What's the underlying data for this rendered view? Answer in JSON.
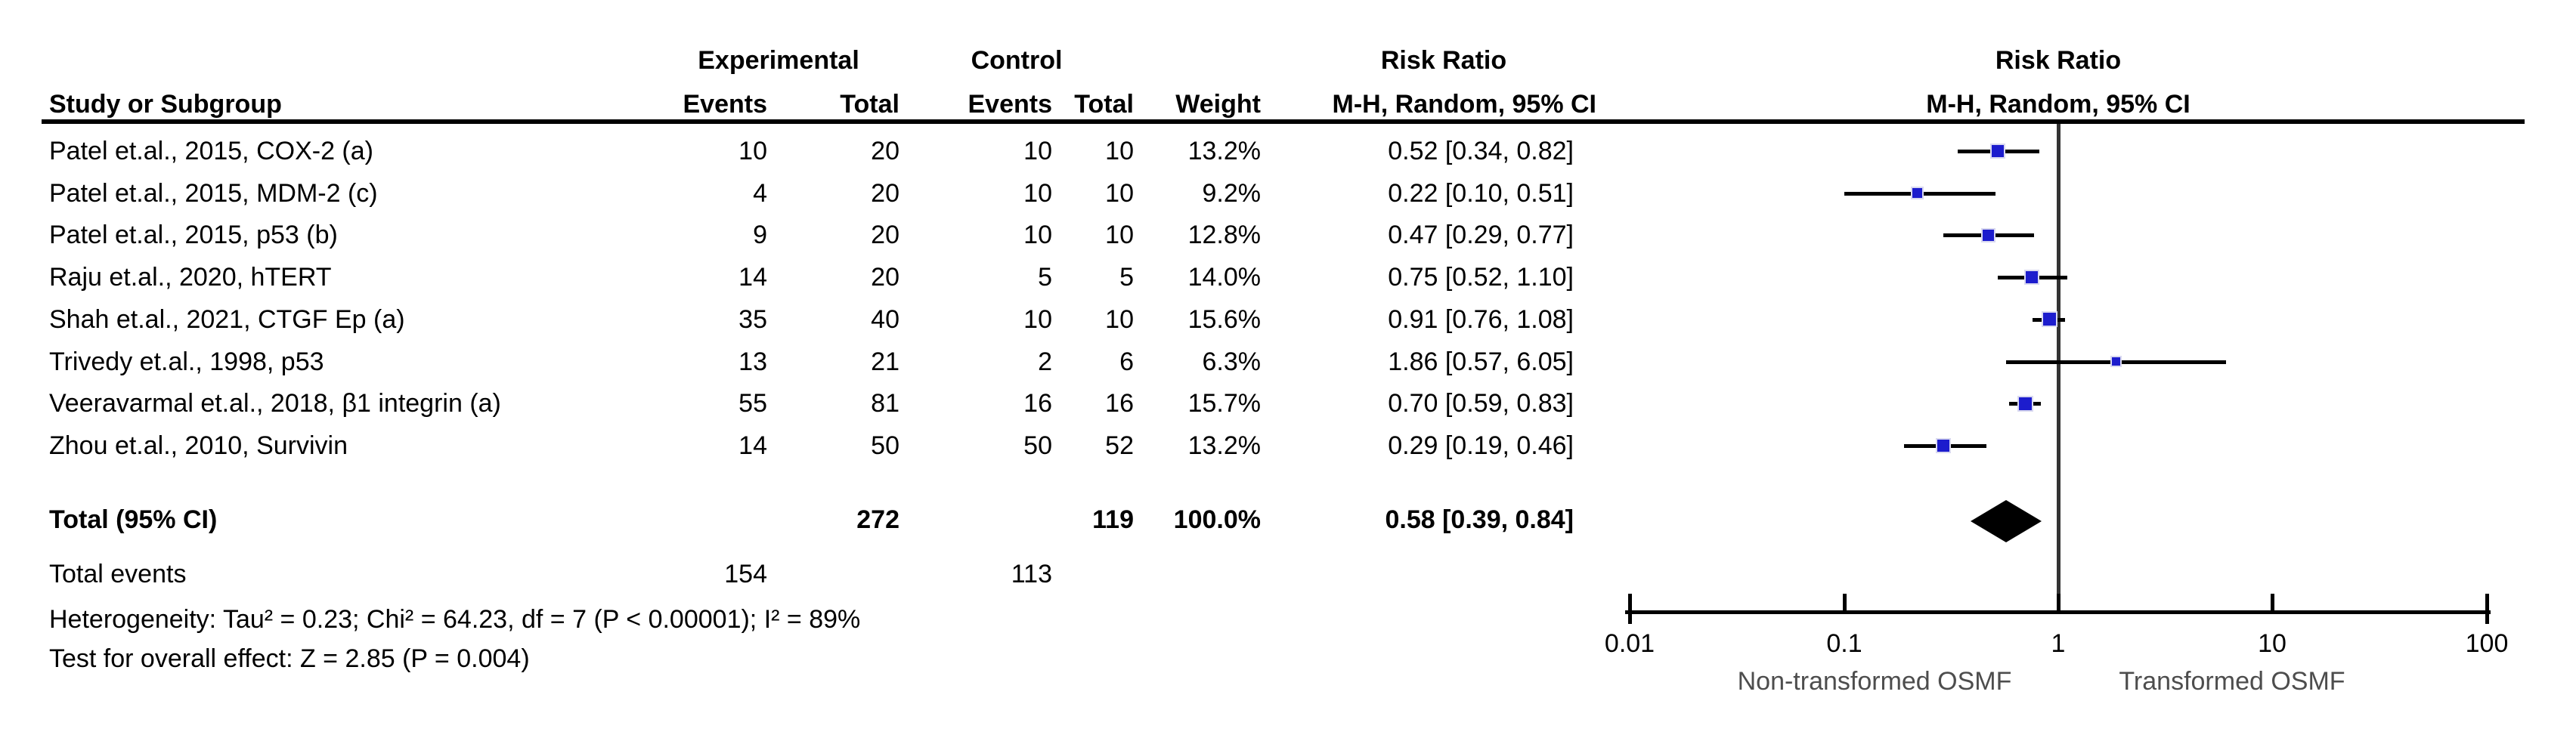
{
  "table": {
    "col_headers": {
      "study": "Study or Subgroup",
      "group_experimental": "Experimental",
      "group_control": "Control",
      "events": "Events",
      "total": "Total",
      "weight": "Weight",
      "effect_title": "Risk Ratio",
      "effect_method": "M-H, Random, 95% CI",
      "plot_title": "Risk Ratio",
      "plot_method": "M-H, Random, 95% CI"
    },
    "rows": [
      {
        "study": "Patel et.al., 2015, COX-2 (a)",
        "exp_events": "10",
        "exp_total": "20",
        "ctrl_events": "10",
        "ctrl_total": "10",
        "weight": "13.2%",
        "rr_ci": "0.52 [0.34, 0.82]"
      },
      {
        "study": "Patel et.al., 2015, MDM-2 (c)",
        "exp_events": "4",
        "exp_total": "20",
        "ctrl_events": "10",
        "ctrl_total": "10",
        "weight": "9.2%",
        "rr_ci": "0.22 [0.10, 0.51]"
      },
      {
        "study": "Patel et.al., 2015, p53 (b)",
        "exp_events": "9",
        "exp_total": "20",
        "ctrl_events": "10",
        "ctrl_total": "10",
        "weight": "12.8%",
        "rr_ci": "0.47 [0.29, 0.77]"
      },
      {
        "study": "Raju et.al., 2020, hTERT",
        "exp_events": "14",
        "exp_total": "20",
        "ctrl_events": "5",
        "ctrl_total": "5",
        "weight": "14.0%",
        "rr_ci": "0.75 [0.52, 1.10]"
      },
      {
        "study": "Shah et.al., 2021, CTGF Ep (a)",
        "exp_events": "35",
        "exp_total": "40",
        "ctrl_events": "10",
        "ctrl_total": "10",
        "weight": "15.6%",
        "rr_ci": "0.91 [0.76, 1.08]"
      },
      {
        "study": "Trivedy et.al., 1998, p53",
        "exp_events": "13",
        "exp_total": "21",
        "ctrl_events": "2",
        "ctrl_total": "6",
        "weight": "6.3%",
        "rr_ci": "1.86 [0.57, 6.05]"
      },
      {
        "study": "Veeravarmal et.al., 2018, β1 integrin (a)",
        "exp_events": "55",
        "exp_total": "81",
        "ctrl_events": "16",
        "ctrl_total": "16",
        "weight": "15.7%",
        "rr_ci": "0.70 [0.59, 0.83]"
      },
      {
        "study": "Zhou et.al., 2010, Survivin",
        "exp_events": "14",
        "exp_total": "50",
        "ctrl_events": "50",
        "ctrl_total": "52",
        "weight": "13.2%",
        "rr_ci": "0.29 [0.19, 0.46]"
      }
    ],
    "total_row": {
      "label": "Total (95% CI)",
      "exp_total": "272",
      "ctrl_total": "119",
      "weight": "100.0%",
      "rr_ci": "0.58 [0.39, 0.84]"
    },
    "total_events": {
      "label": "Total events",
      "exp": "154",
      "ctrl": "113"
    },
    "heterogeneity": "Heterogeneity: Tau² = 0.23; Chi² = 64.23, df = 7 (P < 0.00001); I² = 89%",
    "overall_effect": "Test for overall effect: Z = 2.85 (P = 0.004)"
  },
  "chart_data": {
    "type": "forest",
    "x_scale": "log10",
    "xlim": [
      0.01,
      100
    ],
    "axis_ticks": [
      0.01,
      0.1,
      1,
      10,
      100
    ],
    "null_line": 1,
    "favours_left_label": "Non-transformed OSMF",
    "favours_right_label": "Transformed OSMF",
    "effect_measure": "Risk Ratio",
    "model": "M-H, Random, 95% CI",
    "studies": [
      {
        "name": "Patel et.al., 2015, COX-2 (a)",
        "rr": 0.52,
        "ci_low": 0.34,
        "ci_high": 0.82,
        "weight_pct": 13.2
      },
      {
        "name": "Patel et.al., 2015, MDM-2 (c)",
        "rr": 0.22,
        "ci_low": 0.1,
        "ci_high": 0.51,
        "weight_pct": 9.2
      },
      {
        "name": "Patel et.al., 2015, p53 (b)",
        "rr": 0.47,
        "ci_low": 0.29,
        "ci_high": 0.77,
        "weight_pct": 12.8
      },
      {
        "name": "Raju et.al., 2020, hTERT",
        "rr": 0.75,
        "ci_low": 0.52,
        "ci_high": 1.1,
        "weight_pct": 14.0
      },
      {
        "name": "Shah et.al., 2021, CTGF Ep (a)",
        "rr": 0.91,
        "ci_low": 0.76,
        "ci_high": 1.08,
        "weight_pct": 15.6
      },
      {
        "name": "Trivedy et.al., 1998, p53",
        "rr": 1.86,
        "ci_low": 0.57,
        "ci_high": 6.05,
        "weight_pct": 6.3
      },
      {
        "name": "Veeravarmal et.al., 2018, β1 integrin (a)",
        "rr": 0.7,
        "ci_low": 0.59,
        "ci_high": 0.83,
        "weight_pct": 15.7
      },
      {
        "name": "Zhou et.al., 2010, Survivin",
        "rr": 0.29,
        "ci_low": 0.19,
        "ci_high": 0.46,
        "weight_pct": 13.2
      }
    ],
    "total": {
      "rr": 0.58,
      "ci_low": 0.39,
      "ci_high": 0.84
    },
    "colors": {
      "marker": "#1c1ccd",
      "ci_line": "#000000",
      "null_line": "#333333",
      "diamond": "#000000",
      "axis": "#000000",
      "caption_text": "#4d4d4d"
    }
  }
}
